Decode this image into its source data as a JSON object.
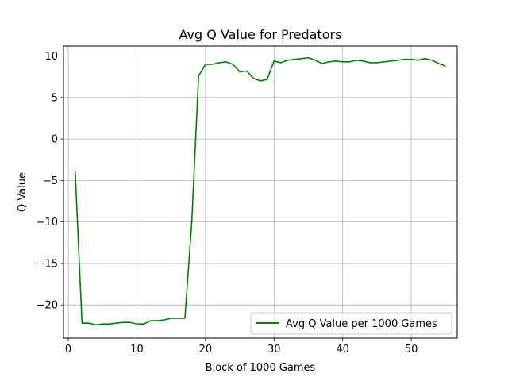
{
  "chart_data": {
    "type": "line",
    "title": "Avg Q Value for Predators",
    "xlabel": "Block of 1000 Games",
    "ylabel": "Q Value",
    "xlim": [
      -0.7,
      56.7
    ],
    "ylim": [
      -24.0,
      11.2
    ],
    "xticks": [
      0,
      10,
      20,
      30,
      40,
      50
    ],
    "xtick_labels": [
      "0",
      "10",
      "20",
      "30",
      "40",
      "50"
    ],
    "yticks": [
      10,
      5,
      0,
      -5,
      -10,
      -15,
      -20
    ],
    "ytick_labels": [
      "10",
      "5",
      "0",
      "−5",
      "−10",
      "−15",
      "−20"
    ],
    "grid": true,
    "legend_position": "lower-right",
    "series": [
      {
        "name": "Avg Q Value per 1000 Games",
        "color": "#008000",
        "x": [
          1,
          2,
          3,
          4,
          5,
          6,
          7,
          8,
          9,
          10,
          11,
          12,
          13,
          14,
          15,
          16,
          17,
          18,
          19,
          20,
          21,
          22,
          23,
          24,
          25,
          26,
          27,
          28,
          29,
          30,
          31,
          32,
          33,
          34,
          35,
          36,
          37,
          38,
          39,
          40,
          41,
          42,
          43,
          44,
          45,
          46,
          47,
          48,
          49,
          50,
          51,
          52,
          53,
          54,
          55
        ],
        "values": [
          -3.8,
          -22.2,
          -22.2,
          -22.4,
          -22.3,
          -22.3,
          -22.2,
          -22.1,
          -22.1,
          -22.3,
          -22.3,
          -21.9,
          -21.9,
          -21.8,
          -21.6,
          -21.6,
          -21.6,
          -10.0,
          7.6,
          9.0,
          9.0,
          9.2,
          9.3,
          9.0,
          8.1,
          8.2,
          7.3,
          7.0,
          7.2,
          9.4,
          9.2,
          9.5,
          9.6,
          9.7,
          9.8,
          9.5,
          9.1,
          9.3,
          9.4,
          9.3,
          9.3,
          9.5,
          9.4,
          9.2,
          9.2,
          9.3,
          9.4,
          9.5,
          9.6,
          9.6,
          9.5,
          9.7,
          9.5,
          9.1,
          8.8
        ]
      }
    ]
  }
}
